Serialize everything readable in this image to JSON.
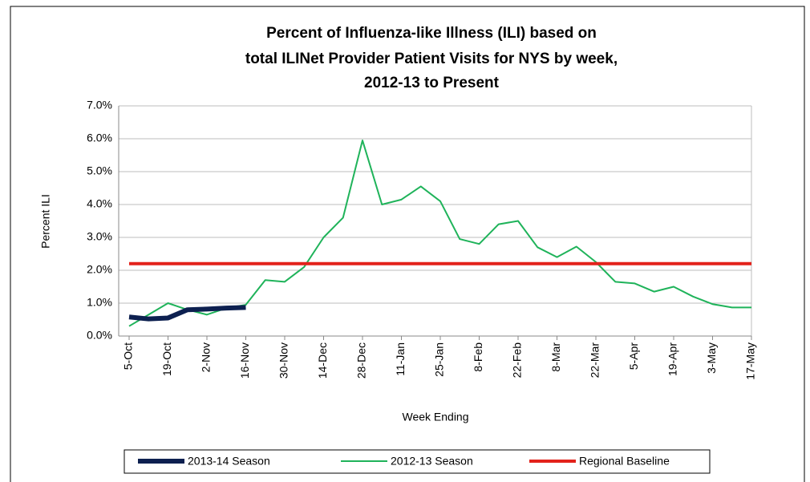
{
  "chart_data": {
    "type": "line",
    "title": [
      "Percent of Influenza-like Illness (ILI) based on",
      "total ILINet Provider Patient Visits for NYS by week,",
      "2012-13 to Present"
    ],
    "x_label": "Week Ending",
    "y_label": "Percent ILI",
    "categories": [
      "5-Oct",
      null,
      "19-Oct",
      null,
      "2-Nov",
      null,
      "16-Nov",
      null,
      "30-Nov",
      null,
      "14-Dec",
      null,
      "28-Dec",
      null,
      "11-Jan",
      null,
      "25-Jan",
      null,
      "8-Feb",
      null,
      "22-Feb",
      null,
      "8-Mar",
      null,
      "22-Mar",
      null,
      "5-Apr",
      null,
      "19-Apr",
      null,
      "3-May",
      null,
      "17-May"
    ],
    "series": [
      {
        "name": "2013-14 Season",
        "color": "#0d2050",
        "width": 6,
        "values": [
          0.58,
          0.52,
          0.55,
          0.8,
          0.82,
          0.85,
          0.87,
          null,
          null,
          null,
          null,
          null,
          null,
          null,
          null,
          null,
          null,
          null,
          null,
          null,
          null,
          null,
          null,
          null,
          null,
          null,
          null,
          null,
          null,
          null,
          null,
          null,
          null
        ]
      },
      {
        "name": "2012-13 Season",
        "color": "#1fb35a",
        "width": 2,
        "values": [
          0.3,
          0.65,
          1.0,
          0.8,
          0.65,
          0.85,
          0.95,
          1.7,
          1.65,
          2.1,
          3.0,
          3.6,
          5.95,
          4.0,
          4.15,
          4.55,
          4.1,
          2.95,
          2.8,
          3.4,
          3.5,
          2.7,
          2.4,
          2.72,
          2.25,
          1.65,
          1.6,
          1.35,
          1.5,
          1.2,
          0.97,
          0.87,
          0.87
        ]
      },
      {
        "name": "Regional Baseline",
        "color": "#e3221b",
        "width": 4,
        "values": [
          2.2,
          2.2,
          2.2,
          2.2,
          2.2,
          2.2,
          2.2,
          2.2,
          2.2,
          2.2,
          2.2,
          2.2,
          2.2,
          2.2,
          2.2,
          2.2,
          2.2,
          2.2,
          2.2,
          2.2,
          2.2,
          2.2,
          2.2,
          2.2,
          2.2,
          2.2,
          2.2,
          2.2,
          2.2,
          2.2,
          2.2,
          2.2,
          2.2
        ]
      }
    ],
    "ylim": [
      0,
      7
    ],
    "yticks": [
      {
        "value": 0,
        "label": "0.0%"
      },
      {
        "value": 1,
        "label": "1.0%"
      },
      {
        "value": 2,
        "label": "2.0%"
      },
      {
        "value": 3,
        "label": "3.0%"
      },
      {
        "value": 4,
        "label": "4.0%"
      },
      {
        "value": 5,
        "label": "5.0%"
      },
      {
        "value": 6,
        "label": "6.0%"
      },
      {
        "value": 7,
        "label": "7.0%"
      }
    ],
    "grid": true,
    "legend": "bottom"
  }
}
